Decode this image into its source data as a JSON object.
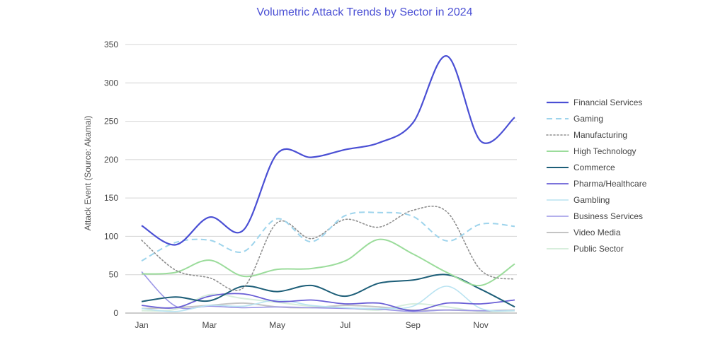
{
  "chart_data": {
    "type": "line",
    "title": "Volumetric Attack Trends by Sector in 2024",
    "ylabel": "Attack Event (Source: Akamai)",
    "xlabel": "",
    "ylim": [
      0,
      350
    ],
    "yticks": [
      0,
      50,
      100,
      150,
      200,
      250,
      300,
      350
    ],
    "x": [
      "Jan",
      "Feb",
      "Mar",
      "Apr",
      "May",
      "Jun",
      "Jul",
      "Aug",
      "Sep",
      "Oct",
      "Nov",
      "Dec"
    ],
    "xtick_labels": [
      "Jan",
      "Mar",
      "May",
      "Jul",
      "Sep",
      "Nov"
    ],
    "grid": "horizontal",
    "legend_position": "right",
    "series": [
      {
        "name": "Financial Services",
        "color": "#4a4fd4",
        "dash": "solid",
        "width": 2.2,
        "values": [
          114,
          89,
          125,
          108,
          208,
          203,
          213,
          222,
          248,
          335,
          224,
          255
        ]
      },
      {
        "name": "Gaming",
        "color": "#9ed4ec",
        "dash": "dashed",
        "width": 2,
        "values": [
          68,
          92,
          95,
          80,
          123,
          93,
          127,
          131,
          126,
          94,
          116,
          113
        ]
      },
      {
        "name": "Manufacturing",
        "color": "#8f8f8f",
        "dash": "dotted",
        "width": 1.6,
        "values": [
          95,
          56,
          46,
          33,
          118,
          97,
          122,
          112,
          134,
          132,
          56,
          44
        ]
      },
      {
        "name": "High Technology",
        "color": "#9bdc9b",
        "dash": "solid",
        "width": 2,
        "values": [
          51,
          53,
          69,
          48,
          57,
          58,
          68,
          96,
          77,
          53,
          36,
          64
        ]
      },
      {
        "name": "Commerce",
        "color": "#1d5e78",
        "dash": "solid",
        "width": 2,
        "values": [
          15,
          21,
          16,
          35,
          28,
          36,
          22,
          39,
          43,
          50,
          31,
          8
        ]
      },
      {
        "name": "Pharma/Healthcare",
        "color": "#6a5fd6",
        "dash": "solid",
        "width": 1.8,
        "values": [
          10,
          7,
          22,
          25,
          15,
          17,
          12,
          13,
          3,
          13,
          12,
          17
        ]
      },
      {
        "name": "Gambling",
        "color": "#b9e3f1",
        "dash": "solid",
        "width": 1.6,
        "values": [
          6,
          2,
          10,
          9,
          17,
          10,
          7,
          6,
          9,
          35,
          6,
          3
        ]
      },
      {
        "name": "Business Services",
        "color": "#9b96e6",
        "dash": "solid",
        "width": 1.6,
        "values": [
          54,
          9,
          9,
          7,
          8,
          7,
          6,
          5,
          2,
          4,
          3,
          3
        ]
      },
      {
        "name": "Video Media",
        "color": "#c4c4c4",
        "dash": "solid",
        "width": 2,
        "values": [
          6,
          7,
          10,
          13,
          8,
          7,
          10,
          8,
          4,
          4,
          3,
          4
        ]
      },
      {
        "name": "Public Sector",
        "color": "#d7eedc",
        "dash": "solid",
        "width": 2,
        "values": [
          3,
          5,
          24,
          19,
          14,
          9,
          7,
          4,
          12,
          8,
          2,
          3
        ]
      }
    ]
  }
}
